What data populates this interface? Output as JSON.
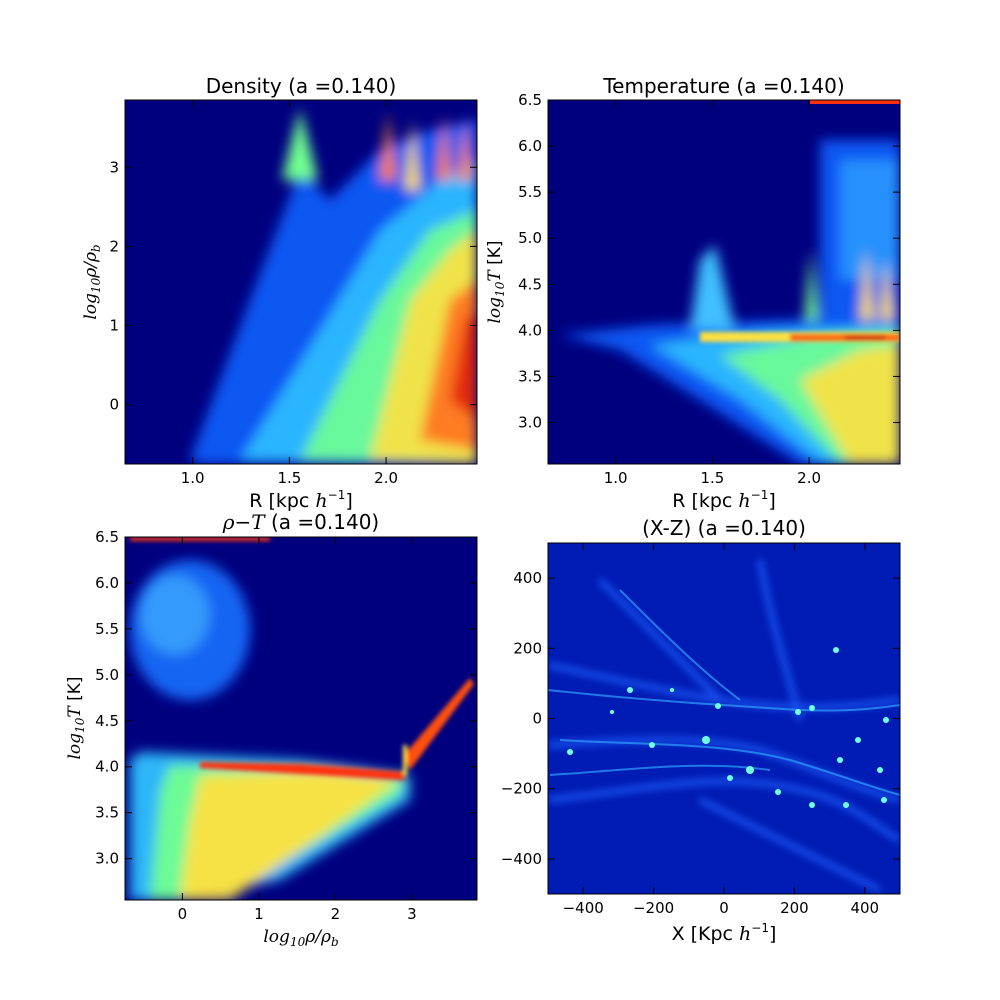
{
  "chart_data": [
    {
      "type": "heatmap",
      "title": "Density (a =0.140)",
      "xlabel": "R [kpc h^-1]",
      "ylabel": "log10 ρ/ρ_b",
      "xlim": [
        0.65,
        2.47
      ],
      "ylim": [
        -0.75,
        3.85
      ],
      "xticks": [
        "1.0",
        "1.5",
        "2.0"
      ],
      "xtick_values": [
        1.0,
        1.5,
        2.0
      ],
      "yticks": [
        "0",
        "1",
        "2",
        "3"
      ],
      "ytick_values": [
        0,
        1,
        2,
        3
      ],
      "colormap": "jet",
      "background": "#00007f",
      "grid": false
    },
    {
      "type": "heatmap",
      "title": "Temperature (a =0.140)",
      "xlabel": "R [kpc h^-1]",
      "ylabel": "log10 T [K]",
      "xlim": [
        0.65,
        2.47
      ],
      "ylim": [
        2.55,
        6.5
      ],
      "xticks": [
        "1.0",
        "1.5",
        "2.0"
      ],
      "xtick_values": [
        1.0,
        1.5,
        2.0
      ],
      "yticks": [
        "3.0",
        "3.5",
        "4.0",
        "4.5",
        "5.0",
        "5.5",
        "6.0",
        "6.5"
      ],
      "ytick_values": [
        3.0,
        3.5,
        4.0,
        4.5,
        5.0,
        5.5,
        6.0,
        6.5
      ],
      "colormap": "jet",
      "background": "#00007f",
      "grid": false
    },
    {
      "type": "heatmap",
      "title": "ρ−T (a =0.140)",
      "xlabel": "log10 ρ/ρ_b",
      "ylabel": "log10 T [K]",
      "xlim": [
        -0.75,
        3.85
      ],
      "ylim": [
        2.55,
        6.5
      ],
      "xticks": [
        "0",
        "1",
        "2",
        "3"
      ],
      "xtick_values": [
        0,
        1,
        2,
        3
      ],
      "yticks": [
        "3.0",
        "3.5",
        "4.0",
        "4.5",
        "5.0",
        "5.5",
        "6.0",
        "6.5"
      ],
      "ytick_values": [
        3.0,
        3.5,
        4.0,
        4.5,
        5.0,
        5.5,
        6.0,
        6.5
      ],
      "colormap": "jet",
      "background": "#00007f",
      "grid": false
    },
    {
      "type": "heatmap",
      "title": "(X-Z) (a =0.140)",
      "xlabel": "X [Kpc h^-1]",
      "ylabel": "",
      "xlim": [
        -500,
        500
      ],
      "ylim": [
        -500,
        500
      ],
      "xticks": [
        "−400",
        "−200",
        "0",
        "200",
        "400"
      ],
      "xtick_values": [
        -400,
        -200,
        0,
        200,
        400
      ],
      "yticks": [
        "−400",
        "−200",
        "0",
        "200",
        "400"
      ],
      "ytick_values": [
        -400,
        -200,
        0,
        200,
        400
      ],
      "colormap": "jet",
      "background": "#00007f",
      "grid": false
    }
  ],
  "panels": [
    {
      "title": "Density (a =0.140)",
      "xlabel_text": "R [kpc ",
      "xlabel_math": "h",
      "xlabel_sup": "−1",
      "xlabel_end": "]",
      "ylabel_main": "log",
      "ylabel_sub": "10",
      "ylabel_rest": "ρ/ρ",
      "ylabel_sub2": "b",
      "ylabel_unit": ""
    },
    {
      "title": "Temperature (a =0.140)",
      "xlabel_text": "R [kpc ",
      "xlabel_math": "h",
      "xlabel_sup": "−1",
      "xlabel_end": "]",
      "ylabel_main": "log",
      "ylabel_sub": "10",
      "ylabel_rest": "T",
      "ylabel_sub2": "",
      "ylabel_unit": "  [K]"
    },
    {
      "title_math": "ρ−T",
      "title_rest": " (a =0.140)",
      "xlabel_main": "log",
      "xlabel_sub": "10",
      "xlabel_rest": "ρ/ρ",
      "xlabel_sub2": "b",
      "ylabel_main": "log",
      "ylabel_sub": "10",
      "ylabel_rest": "T",
      "ylabel_sub2": "",
      "ylabel_unit": "  [K]"
    },
    {
      "title": "(X-Z) (a =0.140)",
      "xlabel_text": "X [Kpc ",
      "xlabel_math": "h",
      "xlabel_sup": "−1",
      "xlabel_end": "]"
    }
  ]
}
